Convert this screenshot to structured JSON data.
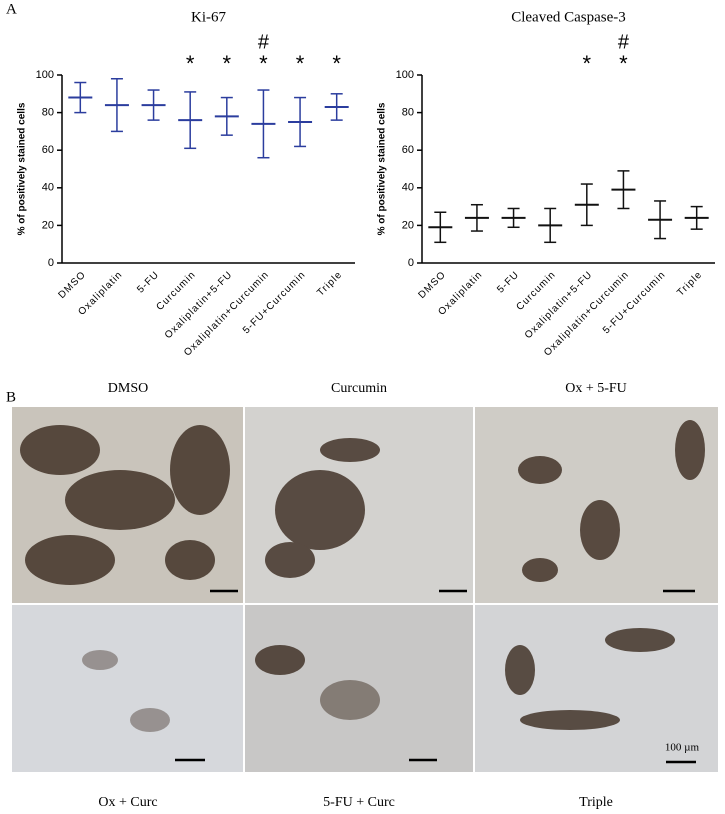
{
  "chart_data": [
    {
      "type": "dotplot",
      "title": "Ki-67",
      "y_label": "% of positively stained cells",
      "categories": [
        "DMSO",
        "Oxaliplatin",
        "5-FU",
        "Curcumin",
        "Oxaliplatin+5-FU",
        "Oxaliplatin+Curcumin",
        "5-FU+Curcumin",
        "Triple"
      ],
      "values": [
        88,
        84,
        84,
        76,
        78,
        74,
        75,
        83
      ],
      "errors": [
        8,
        14,
        8,
        15,
        10,
        18,
        13,
        7
      ],
      "color": "#2b3d9e",
      "stars": [
        null,
        null,
        null,
        "*",
        "*",
        "*",
        "*",
        "*"
      ],
      "hashes": [
        null,
        null,
        null,
        null,
        null,
        "#",
        null,
        null
      ],
      "ylim": [
        0,
        100
      ],
      "yticks": [
        0,
        20,
        40,
        60,
        80,
        100
      ]
    },
    {
      "type": "dotplot",
      "title": "Cleaved Caspase-3",
      "y_label": "% of positively stained cells",
      "categories": [
        "DMSO",
        "Oxaliplatin",
        "5-FU",
        "Curcumin",
        "Oxaliplatin+5-FU",
        "Oxaliplatin+Curcumin",
        "5-FU+Curcumin",
        "Triple"
      ],
      "values": [
        19,
        24,
        24,
        20,
        31,
        39,
        23,
        24
      ],
      "errors": [
        8,
        7,
        5,
        9,
        11,
        10,
        10,
        6
      ],
      "color": "#111111",
      "stars": [
        null,
        null,
        null,
        null,
        "*",
        "*",
        null,
        null
      ],
      "hashes": [
        null,
        null,
        null,
        null,
        null,
        "#",
        null,
        null
      ],
      "ylim": [
        0,
        100
      ],
      "yticks": [
        0,
        20,
        40,
        60,
        80,
        100
      ]
    }
  ],
  "figure": {
    "panel_a": "A",
    "panel_b": "B",
    "top_labels": [
      "DMSO",
      "Curcumin",
      "Ox + 5-FU"
    ],
    "bottom_labels": [
      "Ox + Curc",
      "5-FU + Curc",
      "Triple"
    ],
    "scale_bar": "100 µm"
  }
}
